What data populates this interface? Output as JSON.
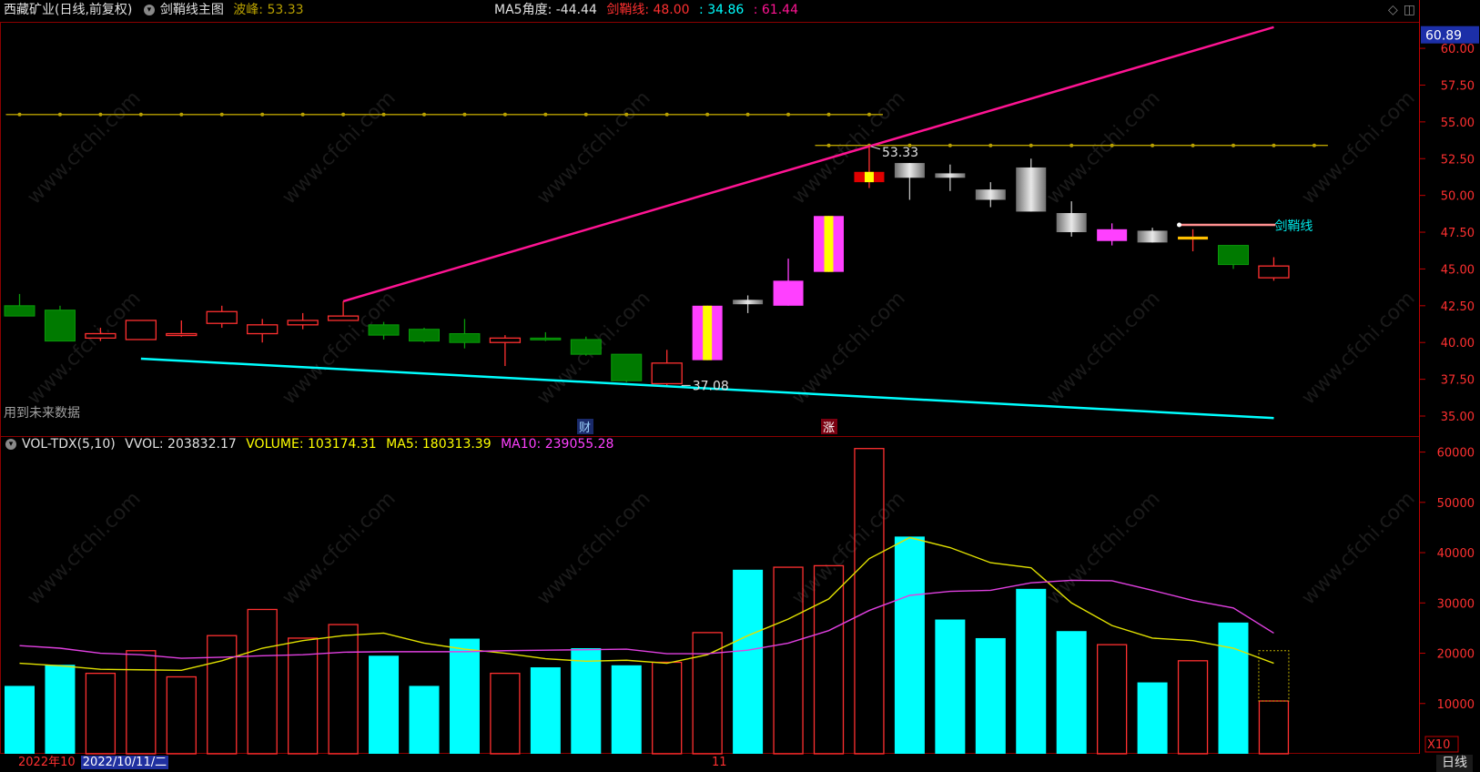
{
  "main_header": {
    "stock": "西藏矿业",
    "mode": "(日线,前复权)",
    "indicator": "剑鞘线主图",
    "wave_label": "波峰: 53.33",
    "ma5_angle": "MA5角度: -44.44",
    "jx_label": "剑鞘线: 48.00",
    "low_label": ": 34.86",
    "high_label": ": 61.44",
    "future_note": "用到未来数据"
  },
  "vol_header": {
    "name": "VOL-TDX(5,10)",
    "vvol": "VVOL: 203832.17",
    "volume": "VOLUME: 103174.31",
    "ma5": "MA5: 180313.39",
    "ma10": "MA10: 239055.28"
  },
  "bottom": {
    "left_year": "2022年10",
    "date": "2022/10/11/二",
    "mid": "11",
    "period": "日线"
  },
  "watermark": "www.cfchi.com",
  "colors": {
    "up": "#ff3030",
    "down": "#007a00",
    "cyan": "#00ffff",
    "pink": "#ff1493",
    "gold": "#b8a000",
    "magenta": "#ff40ff",
    "yellow": "#ffff00",
    "grey": "#a0a0a0"
  },
  "chart_data": [
    {
      "type": "candlestick",
      "current_price_label": "60.89",
      "y_ticks": [
        60.0,
        57.5,
        55.0,
        52.5,
        50.0,
        47.5,
        45.0,
        42.5,
        40.0,
        37.5,
        35.0
      ],
      "ylim": [
        33.7,
        61.8
      ],
      "annotations": {
        "peak": "53.33",
        "trough": "37.08",
        "jx_line": "剑鞘线",
        "cai": "财",
        "zhang": "涨"
      },
      "candles": [
        {
          "o": 41.8,
          "h": 43.3,
          "l": 41.8,
          "c": 42.5,
          "style": "down"
        },
        {
          "o": 42.2,
          "h": 42.5,
          "l": 40.1,
          "c": 40.1,
          "style": "down"
        },
        {
          "o": 40.3,
          "h": 41.0,
          "l": 40.1,
          "c": 40.6,
          "style": "up"
        },
        {
          "o": 40.2,
          "h": 41.5,
          "l": 40.2,
          "c": 41.5,
          "style": "up"
        },
        {
          "o": 40.5,
          "h": 41.5,
          "l": 40.4,
          "c": 40.6,
          "style": "up"
        },
        {
          "o": 41.3,
          "h": 42.5,
          "l": 41.0,
          "c": 42.1,
          "style": "up"
        },
        {
          "o": 40.6,
          "h": 41.6,
          "l": 40.0,
          "c": 41.2,
          "style": "up"
        },
        {
          "o": 41.2,
          "h": 42.0,
          "l": 40.9,
          "c": 41.5,
          "style": "up"
        },
        {
          "o": 41.5,
          "h": 42.8,
          "l": 41.5,
          "c": 41.8,
          "style": "up"
        },
        {
          "o": 41.2,
          "h": 41.4,
          "l": 40.2,
          "c": 40.5,
          "style": "down"
        },
        {
          "o": 40.9,
          "h": 41.0,
          "l": 40.0,
          "c": 40.1,
          "style": "down"
        },
        {
          "o": 40.6,
          "h": 41.6,
          "l": 39.6,
          "c": 40.0,
          "style": "down"
        },
        {
          "o": 40.0,
          "h": 40.5,
          "l": 38.4,
          "c": 40.3,
          "style": "up"
        },
        {
          "o": 40.3,
          "h": 40.7,
          "l": 40.1,
          "c": 40.2,
          "style": "down"
        },
        {
          "o": 40.2,
          "h": 40.4,
          "l": 39.1,
          "c": 39.2,
          "style": "down"
        },
        {
          "o": 39.2,
          "h": 39.2,
          "l": 37.3,
          "c": 37.4,
          "style": "down"
        },
        {
          "o": 37.2,
          "h": 39.5,
          "l": 37.1,
          "c": 38.6,
          "style": "up"
        },
        {
          "o": 38.8,
          "h": 42.5,
          "l": 38.8,
          "c": 42.5,
          "style": "magyel"
        },
        {
          "o": 42.6,
          "h": 43.2,
          "l": 42.0,
          "c": 42.9,
          "style": "grey"
        },
        {
          "o": 42.5,
          "h": 45.7,
          "l": 42.5,
          "c": 44.2,
          "style": "mag"
        },
        {
          "o": 44.8,
          "h": 48.6,
          "l": 44.8,
          "c": 48.6,
          "style": "magyel"
        },
        {
          "o": 50.9,
          "h": 53.33,
          "l": 50.5,
          "c": 51.6,
          "style": "redyel"
        },
        {
          "o": 51.2,
          "h": 52.2,
          "l": 49.7,
          "c": 52.2,
          "style": "grey"
        },
        {
          "o": 51.2,
          "h": 52.1,
          "l": 50.3,
          "c": 51.5,
          "style": "grey"
        },
        {
          "o": 49.7,
          "h": 50.9,
          "l": 49.2,
          "c": 50.4,
          "style": "grey"
        },
        {
          "o": 48.9,
          "h": 52.5,
          "l": 48.9,
          "c": 51.9,
          "style": "grey"
        },
        {
          "o": 47.5,
          "h": 49.6,
          "l": 47.2,
          "c": 48.8,
          "style": "grey"
        },
        {
          "o": 46.9,
          "h": 48.1,
          "l": 46.6,
          "c": 47.7,
          "style": "mag"
        },
        {
          "o": 46.8,
          "h": 47.8,
          "l": 46.8,
          "c": 47.6,
          "style": "grey"
        },
        {
          "o": 47.0,
          "h": 47.7,
          "l": 46.2,
          "c": 47.2,
          "style": "gold"
        },
        {
          "o": 45.3,
          "h": 46.6,
          "l": 45.0,
          "c": 46.6,
          "style": "down"
        },
        {
          "o": 44.4,
          "h": 45.8,
          "l": 44.2,
          "c": 45.2,
          "style": "up"
        }
      ],
      "upper_line": {
        "from": [
          8,
          42.8
        ],
        "to": [
          31,
          61.44
        ]
      },
      "lower_line": {
        "from": [
          3,
          38.9
        ],
        "to": [
          31,
          34.86
        ]
      },
      "gold_line_1": {
        "value": 55.5,
        "from": 0,
        "to": 21
      },
      "gold_line_2": {
        "value": 53.4,
        "from": 20,
        "to": 32
      },
      "jx_segment": {
        "value": 48.0,
        "from": 29,
        "to": 31
      }
    },
    {
      "type": "bar",
      "y_ticks": [
        60000,
        50000,
        40000,
        30000,
        20000,
        10000
      ],
      "ylim": [
        0,
        63000
      ],
      "unit_label": "X10",
      "volumes": [
        13500,
        17700,
        16000,
        20500,
        15300,
        23500,
        28700,
        23000,
        25700,
        19500,
        13500,
        22900,
        16000,
        17200,
        21000,
        17600,
        18200,
        24100,
        36600,
        37100,
        37400,
        60700,
        43200,
        26700,
        23000,
        32800,
        24400,
        21700,
        14200,
        18500,
        26100,
        10500
      ],
      "vol_style": [
        "cyan",
        "cyan",
        "red",
        "red",
        "red",
        "red",
        "red",
        "red",
        "red",
        "cyan",
        "cyan",
        "cyan",
        "red",
        "cyan",
        "cyan",
        "cyan",
        "red",
        "red",
        "cyan",
        "red",
        "red",
        "red",
        "cyan",
        "cyan",
        "cyan",
        "cyan",
        "cyan",
        "red",
        "cyan",
        "red",
        "cyan",
        "red"
      ],
      "ma5": [
        18000,
        17500,
        16800,
        16700,
        16600,
        18500,
        21000,
        22500,
        23500,
        24000,
        22000,
        20800,
        20000,
        18900,
        18400,
        18600,
        18000,
        19700,
        23500,
        26800,
        30800,
        38800,
        43000,
        41000,
        38000,
        37000,
        30000,
        25500,
        23000,
        22500,
        21000,
        18000
      ],
      "ma10": [
        21500,
        21000,
        20000,
        19700,
        19000,
        19200,
        19500,
        19700,
        20200,
        20300,
        20300,
        20300,
        20500,
        20600,
        20700,
        20800,
        19900,
        19900,
        20600,
        22000,
        24500,
        28500,
        31500,
        32300,
        32500,
        34000,
        34500,
        34400,
        32500,
        30500,
        29000,
        24000
      ]
    }
  ]
}
